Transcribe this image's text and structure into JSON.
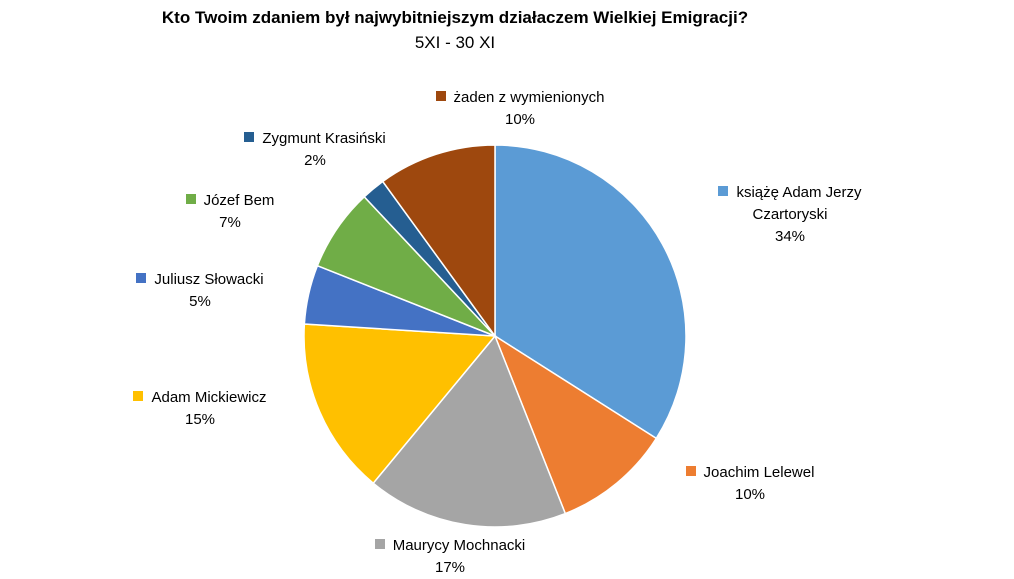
{
  "chart_data": {
    "type": "pie",
    "title": "Kto Twoim zdaniem był najwybitniejszym działaczem Wielkiej Emigracji?",
    "subtitle": "5XI - 30 XI",
    "slices": [
      {
        "label": "książę Adam Jerzy Czartoryski",
        "label_lines": [
          "książę Adam Jerzy",
          "Czartoryski"
        ],
        "percent_label": "34%",
        "value": 34,
        "color": "#5B9BD5"
      },
      {
        "label": "Joachim Lelewel",
        "label_lines": [
          "Joachim Lelewel"
        ],
        "percent_label": "10%",
        "value": 10,
        "color": "#ED7D31"
      },
      {
        "label": "Maurycy Mochnacki",
        "label_lines": [
          "Maurycy Mochnacki"
        ],
        "percent_label": "17%",
        "value": 17,
        "color": "#A5A5A5"
      },
      {
        "label": "Adam Mickiewicz",
        "label_lines": [
          "Adam Mickiewicz"
        ],
        "percent_label": "15%",
        "value": 15,
        "color": "#FFC000"
      },
      {
        "label": "Juliusz Słowacki",
        "label_lines": [
          "Juliusz Słowacki"
        ],
        "percent_label": "5%",
        "value": 5,
        "color": "#4472C4"
      },
      {
        "label": "Józef Bem",
        "label_lines": [
          "Józef Bem"
        ],
        "percent_label": "7%",
        "value": 7,
        "color": "#70AD47"
      },
      {
        "label": "Zygmunt Krasiński",
        "label_lines": [
          "Zygmunt Krasiński"
        ],
        "percent_label": "2%",
        "value": 2,
        "color": "#255E91"
      },
      {
        "label": "żaden z wymienionych",
        "label_lines": [
          "żaden z wymienionych"
        ],
        "percent_label": "10%",
        "value": 10,
        "color": "#9E480E"
      }
    ],
    "legend": "none"
  }
}
